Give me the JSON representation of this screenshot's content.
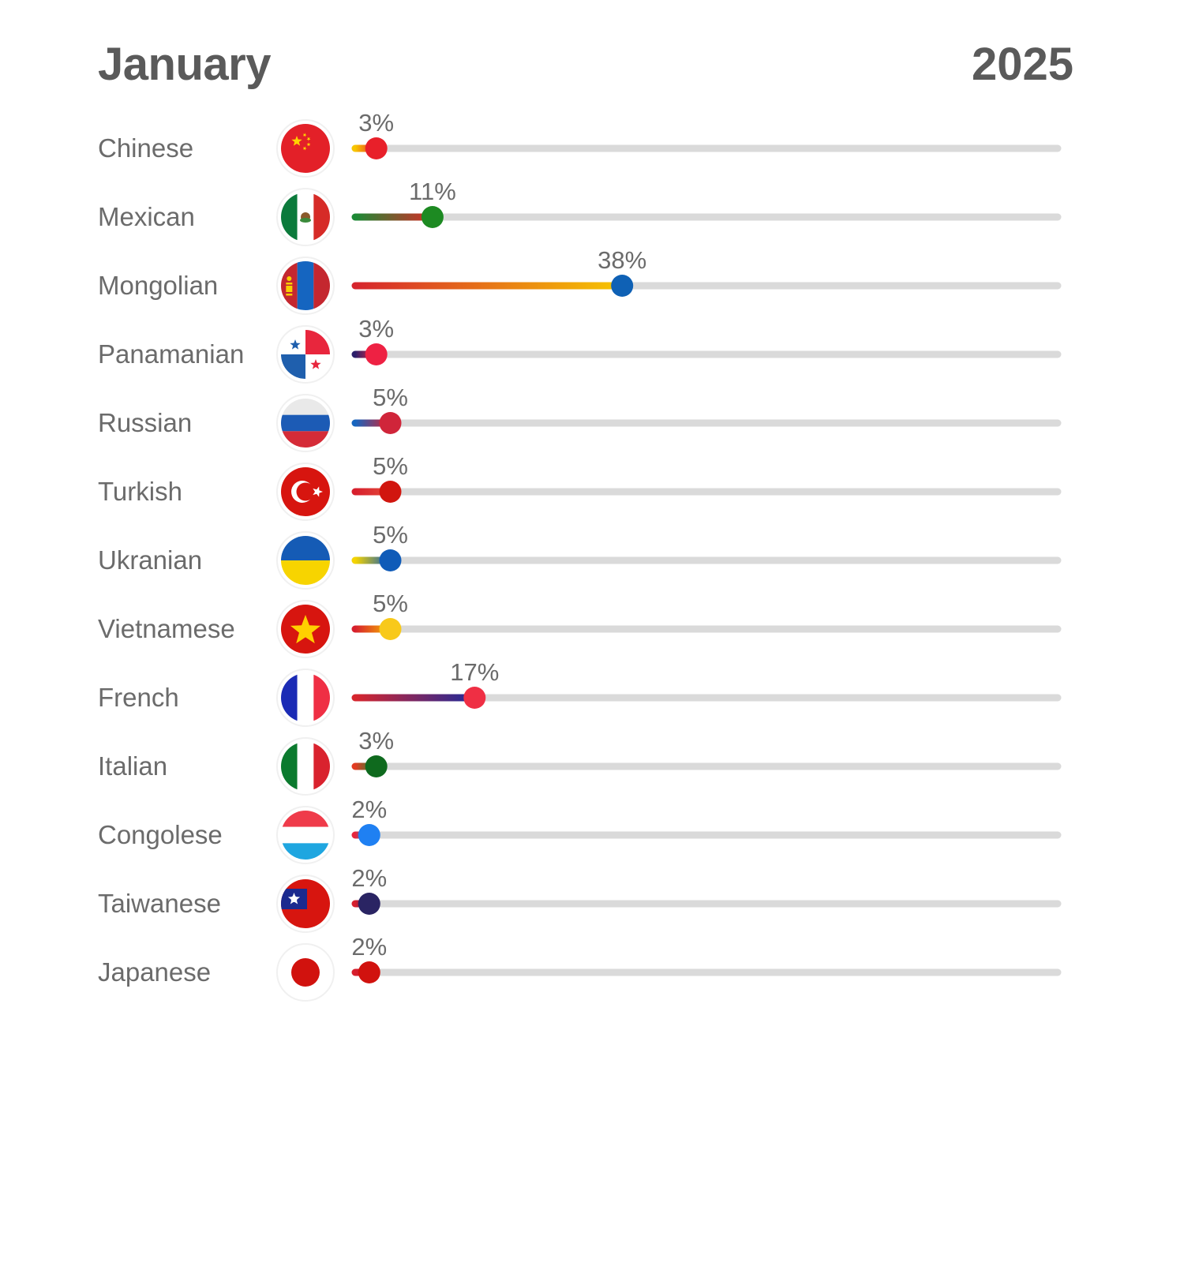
{
  "header": {
    "month": "January",
    "year": "2025"
  },
  "chart_data": {
    "type": "bar",
    "title": "",
    "xlabel": "",
    "ylabel": "",
    "xlim": [
      0,
      100
    ],
    "value_unit": "%",
    "grid": false,
    "legend": "none",
    "track_color": "#dadada",
    "categories": [
      "Chinese",
      "Mexican",
      "Mongolian",
      "Panamanian",
      "Russian",
      "Turkish",
      "Ukranian",
      "Vietnamese",
      "French",
      "Italian",
      "Congolese",
      "Taiwanese",
      "Japanese"
    ],
    "values": [
      3,
      11,
      38,
      3,
      5,
      5,
      5,
      5,
      17,
      3,
      2,
      2,
      2
    ],
    "labels": [
      "3%",
      "11%",
      "38%",
      "3%",
      "5%",
      "5%",
      "5%",
      "5%",
      "17%",
      "3%",
      "2%",
      "2%",
      "2%"
    ],
    "flag_icons": [
      "china-flag-icon",
      "mexico-flag-icon",
      "mongolia-flag-icon",
      "panama-flag-icon",
      "russia-flag-icon",
      "turkey-flag-icon",
      "ukraine-flag-icon",
      "vietnam-flag-icon",
      "france-flag-icon",
      "italy-flag-icon",
      "luxembourg-flag-icon",
      "taiwan-flag-icon",
      "japan-flag-icon"
    ],
    "bar_gradients": [
      [
        "#f7c600",
        "#e8262d"
      ],
      [
        "#1c8a35",
        "#d62b27"
      ],
      [
        "#d6252d",
        "#f7c600"
      ],
      [
        "#2b1f6b",
        "#e8263d"
      ],
      [
        "#1565c0",
        "#d71f2d"
      ],
      [
        "#d71f2d",
        "#e34b3a"
      ],
      [
        "#f5d400",
        "#0f5bb8"
      ],
      [
        "#d71f2d",
        "#f7b500"
      ],
      [
        "#d6252d",
        "#1e2a9a"
      ],
      [
        "#e33b22",
        "#1e8a35"
      ],
      [
        "#e8263d",
        "#1f8ad6"
      ],
      [
        "#d71f2d",
        "#2a1f6b"
      ],
      [
        "#d71f2d",
        "#c8102e"
      ]
    ],
    "marker_colors": [
      "#e8202a",
      "#1d8a22",
      "#0f61b5",
      "#ee2143",
      "#d0253a",
      "#d1160f",
      "#0f5bb8",
      "#f8c91a",
      "#ef2f44",
      "#0f6a1e",
      "#1f80f2",
      "#2a2463",
      "#d1120e"
    ]
  }
}
